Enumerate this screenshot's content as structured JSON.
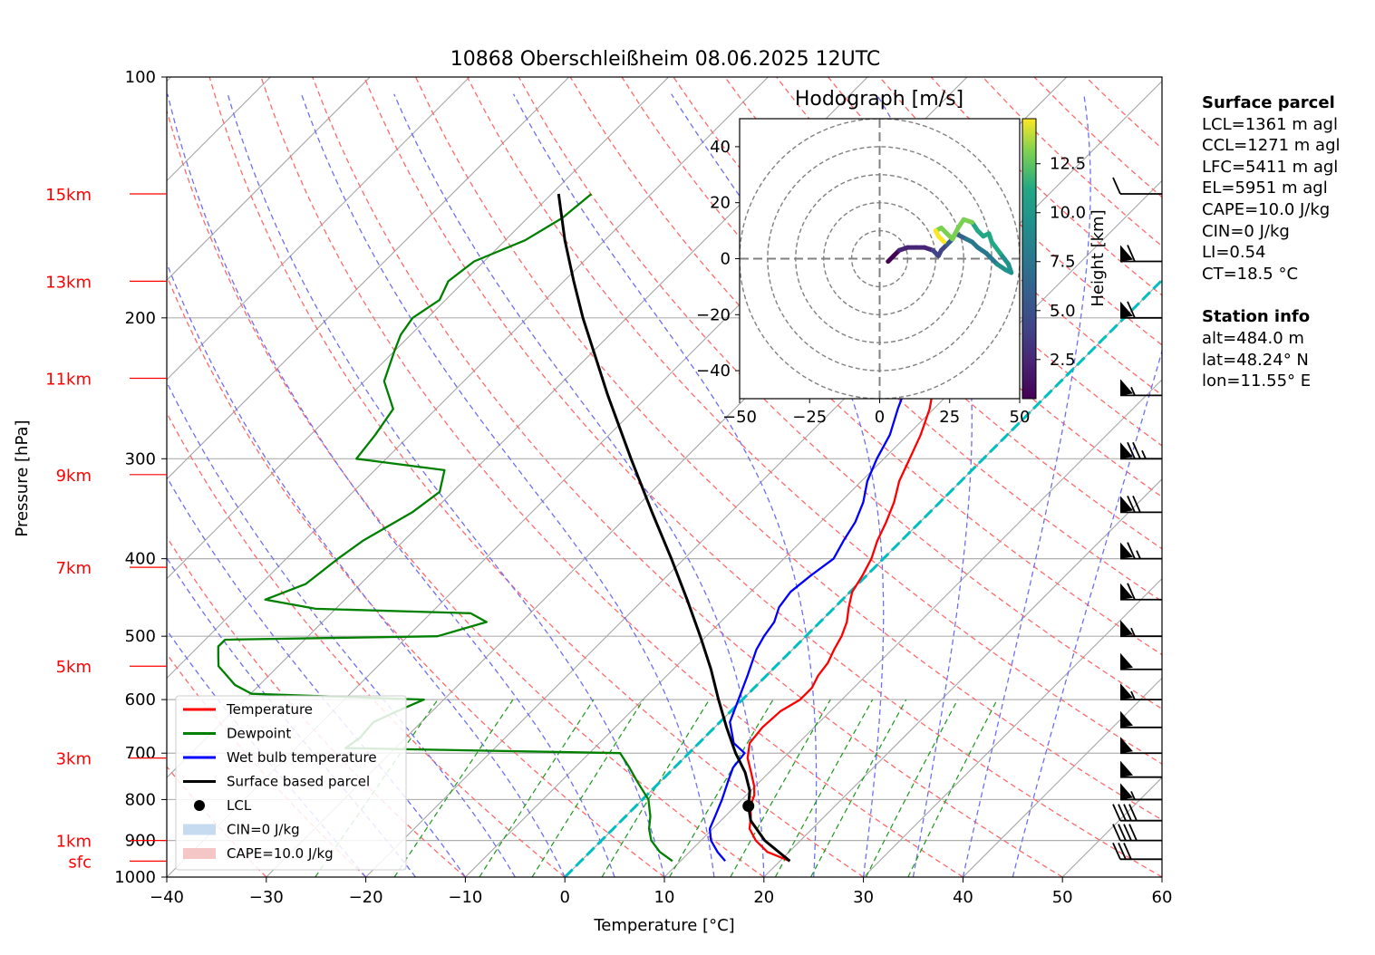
{
  "chart_data": {
    "type": "skew-t log-p sounding with hodograph",
    "title": "10868 Oberschleißheim 08.06.2025 12UTC",
    "xlabel": "Temperature [°C]",
    "ylabel": "Pressure [hPa]",
    "xlim": [
      -40,
      60
    ],
    "ylim": [
      1000,
      100
    ],
    "x_ticks": [
      -40,
      -30,
      -20,
      -10,
      0,
      10,
      20,
      30,
      40,
      50,
      60
    ],
    "y_ticks": [
      100,
      200,
      300,
      400,
      500,
      600,
      700,
      800,
      900,
      1000
    ],
    "height_labels": [
      {
        "label": "sfc",
        "p": 955
      },
      {
        "label": "1km",
        "p": 900
      },
      {
        "label": "3km",
        "p": 710
      },
      {
        "label": "5km",
        "p": 545
      },
      {
        "label": "7km",
        "p": 410
      },
      {
        "label": "9km",
        "p": 314
      },
      {
        "label": "11km",
        "p": 238
      },
      {
        "label": "13km",
        "p": 180
      },
      {
        "label": "15km",
        "p": 140
      }
    ],
    "legend": {
      "placement": "lower-left",
      "entries": [
        {
          "label": "Temperature",
          "color": "#ff0000",
          "kind": "line"
        },
        {
          "label": "Dewpoint",
          "color": "#008000",
          "kind": "line"
        },
        {
          "label": "Wet bulb temperature",
          "color": "#0000ff",
          "kind": "line"
        },
        {
          "label": "Surface based parcel",
          "color": "#000000",
          "kind": "line"
        },
        {
          "label": "LCL",
          "color": "#000000",
          "kind": "dot"
        },
        {
          "label": "CIN=0 J/kg",
          "color": "#c6dbef",
          "kind": "patch"
        },
        {
          "label": "CAPE=10.0 J/kg",
          "color": "#f4c6c6",
          "kind": "patch"
        }
      ]
    },
    "series": [
      {
        "name": "Temperature",
        "color": "#ff0000",
        "points": [
          [
            955,
            21.0
          ],
          [
            930,
            17.8
          ],
          [
            900,
            15.5
          ],
          [
            870,
            13.7
          ],
          [
            840,
            12.6
          ],
          [
            815,
            11.5
          ],
          [
            790,
            10.8
          ],
          [
            770,
            9.9
          ],
          [
            740,
            8.2
          ],
          [
            710,
            6.4
          ],
          [
            680,
            5.1
          ],
          [
            650,
            4.8
          ],
          [
            620,
            5.0
          ],
          [
            600,
            5.8
          ],
          [
            580,
            5.8
          ],
          [
            560,
            5.2
          ],
          [
            540,
            4.9
          ],
          [
            520,
            4.2
          ],
          [
            500,
            3.6
          ],
          [
            480,
            2.7
          ],
          [
            460,
            1.4
          ],
          [
            440,
            0.2
          ],
          [
            420,
            -0.4
          ],
          [
            400,
            -1.2
          ],
          [
            380,
            -2.4
          ],
          [
            360,
            -3.4
          ],
          [
            340,
            -4.6
          ],
          [
            320,
            -6.2
          ],
          [
            300,
            -7.4
          ],
          [
            280,
            -8.7
          ],
          [
            260,
            -10.4
          ],
          [
            245,
            -12.1
          ],
          [
            230,
            -13.6
          ],
          [
            220,
            -13.1
          ],
          [
            210,
            -14.6
          ],
          [
            200,
            -15.0
          ],
          [
            190,
            -16.2
          ],
          [
            180,
            -17.5
          ],
          [
            170,
            -19.4
          ],
          [
            160,
            -21.8
          ],
          [
            150,
            -24.7
          ],
          [
            140,
            -28.5
          ]
        ]
      },
      {
        "name": "Dewpoint",
        "color": "#008000",
        "points": [
          [
            955,
            9.2
          ],
          [
            930,
            7.0
          ],
          [
            900,
            5.0
          ],
          [
            870,
            3.6
          ],
          [
            840,
            2.5
          ],
          [
            800,
            0.6
          ],
          [
            760,
            -2.3
          ],
          [
            730,
            -4.5
          ],
          [
            700,
            -6.9
          ],
          [
            690,
            -35.0
          ],
          [
            670,
            -34.6
          ],
          [
            640,
            -34.8
          ],
          [
            620,
            -33.5
          ],
          [
            600,
            -32.0
          ],
          [
            590,
            -49.9
          ],
          [
            575,
            -52.5
          ],
          [
            560,
            -54.2
          ],
          [
            545,
            -56.0
          ],
          [
            530,
            -57.0
          ],
          [
            515,
            -58.0
          ],
          [
            505,
            -58.0
          ],
          [
            500,
            -37.0
          ],
          [
            480,
            -33.5
          ],
          [
            468,
            -36.0
          ],
          [
            462,
            -52.0
          ],
          [
            450,
            -58.0
          ],
          [
            430,
            -55.5
          ],
          [
            400,
            -54.8
          ],
          [
            380,
            -54.1
          ],
          [
            350,
            -52.0
          ],
          [
            330,
            -51.3
          ],
          [
            310,
            -53.0
          ],
          [
            300,
            -63.0
          ],
          [
            280,
            -63.5
          ],
          [
            260,
            -64.3
          ],
          [
            240,
            -68.0
          ],
          [
            220,
            -70.0
          ],
          [
            210,
            -71.0
          ],
          [
            200,
            -71.5
          ],
          [
            190,
            -70.6
          ],
          [
            180,
            -71.6
          ],
          [
            170,
            -71.0
          ],
          [
            160,
            -68.0
          ],
          [
            150,
            -66.5
          ],
          [
            140,
            -66.0
          ]
        ]
      },
      {
        "name": "Wet bulb temperature",
        "color": "#0000ff",
        "points": [
          [
            955,
            14.5
          ],
          [
            930,
            12.8
          ],
          [
            900,
            11.0
          ],
          [
            870,
            9.7
          ],
          [
            840,
            9.0
          ],
          [
            800,
            8.0
          ],
          [
            760,
            6.8
          ],
          [
            730,
            5.9
          ],
          [
            700,
            5.6
          ],
          [
            680,
            3.5
          ],
          [
            640,
            1.0
          ],
          [
            600,
            -0.4
          ],
          [
            560,
            -1.9
          ],
          [
            520,
            -3.6
          ],
          [
            500,
            -4.2
          ],
          [
            480,
            -4.6
          ],
          [
            460,
            -5.6
          ],
          [
            440,
            -6.0
          ],
          [
            420,
            -5.6
          ],
          [
            400,
            -5.0
          ],
          [
            380,
            -5.8
          ],
          [
            360,
            -6.5
          ],
          [
            340,
            -7.7
          ],
          [
            320,
            -9.4
          ],
          [
            300,
            -10.7
          ],
          [
            280,
            -11.8
          ],
          [
            260,
            -13.6
          ],
          [
            245,
            -14.9
          ],
          [
            230,
            -16.0
          ],
          [
            220,
            -15.6
          ],
          [
            210,
            -17.0
          ],
          [
            200,
            -17.4
          ],
          [
            190,
            -18.2
          ],
          [
            180,
            -18.9
          ],
          [
            170,
            -20.7
          ],
          [
            160,
            -22.9
          ],
          [
            150,
            -25.6
          ],
          [
            140,
            -29.2
          ]
        ]
      },
      {
        "name": "Surface based parcel",
        "color": "#000000",
        "points": [
          [
            955,
            21.0
          ],
          [
            900,
            16.4
          ],
          [
            850,
            13.0
          ],
          [
            815,
            11.3
          ],
          [
            780,
            9.9
          ],
          [
            740,
            7.6
          ],
          [
            700,
            4.7
          ],
          [
            650,
            1.2
          ],
          [
            600,
            -2.4
          ],
          [
            550,
            -6.2
          ],
          [
            500,
            -10.6
          ],
          [
            450,
            -15.6
          ],
          [
            400,
            -21.3
          ],
          [
            350,
            -27.9
          ],
          [
            300,
            -35.4
          ],
          [
            250,
            -44.1
          ],
          [
            200,
            -54.4
          ],
          [
            180,
            -59.0
          ],
          [
            160,
            -64.0
          ],
          [
            140,
            -69.3
          ]
        ]
      }
    ],
    "lcl": {
      "p": 815,
      "t": 11.3
    },
    "wind_barbs": [
      {
        "p": 140,
        "speed_kt": 10
      },
      {
        "p": 170,
        "speed_kt": 60
      },
      {
        "p": 200,
        "speed_kt": 60
      },
      {
        "p": 250,
        "speed_kt": 55
      },
      {
        "p": 300,
        "speed_kt": 75
      },
      {
        "p": 350,
        "speed_kt": 70
      },
      {
        "p": 400,
        "speed_kt": 65
      },
      {
        "p": 450,
        "speed_kt": 60
      },
      {
        "p": 500,
        "speed_kt": 55
      },
      {
        "p": 550,
        "speed_kt": 50
      },
      {
        "p": 600,
        "speed_kt": 55
      },
      {
        "p": 650,
        "speed_kt": 50
      },
      {
        "p": 700,
        "speed_kt": 50
      },
      {
        "p": 750,
        "speed_kt": 50
      },
      {
        "p": 800,
        "speed_kt": 55
      },
      {
        "p": 850,
        "speed_kt": 40
      },
      {
        "p": 900,
        "speed_kt": 40
      },
      {
        "p": 950,
        "speed_kt": 30
      }
    ],
    "hodograph": {
      "title": "Hodograph [m/s]",
      "xlim": [
        -50,
        50
      ],
      "ylim": [
        -50,
        50
      ],
      "x_ticks": [
        -50,
        -25,
        0,
        25,
        50
      ],
      "y_ticks": [
        -40,
        -20,
        0,
        20,
        40
      ],
      "rings": [
        10,
        20,
        30,
        40,
        50
      ],
      "colorbar_label": "Height [km]",
      "colorbar_ticks": [
        2.5,
        5.0,
        7.5,
        10.0,
        12.5
      ],
      "colorbar_range": [
        0.5,
        14.8
      ],
      "points": [
        [
          3,
          -1,
          0.5
        ],
        [
          5,
          1,
          1.0
        ],
        [
          7,
          3,
          1.5
        ],
        [
          10,
          4,
          2.0
        ],
        [
          13,
          4,
          2.5
        ],
        [
          16,
          4,
          3.0
        ],
        [
          19,
          3,
          3.5
        ],
        [
          21,
          1,
          4.0
        ],
        [
          22,
          3,
          4.5
        ],
        [
          24,
          5,
          5.0
        ],
        [
          26,
          7,
          5.5
        ],
        [
          27,
          9,
          6.0
        ],
        [
          29,
          8,
          6.5
        ],
        [
          31,
          7,
          7.0
        ],
        [
          33,
          6,
          7.5
        ],
        [
          35,
          4,
          8.0
        ],
        [
          38,
          2,
          8.5
        ],
        [
          42,
          -2,
          9.0
        ],
        [
          45,
          -4,
          9.5
        ],
        [
          47,
          -5,
          10.0
        ],
        [
          46,
          -2,
          10.3
        ],
        [
          43,
          2,
          10.6
        ],
        [
          40,
          6,
          11.0
        ],
        [
          39,
          9,
          11.4
        ],
        [
          37,
          8,
          11.8
        ],
        [
          35,
          10,
          12.0
        ],
        [
          33,
          13,
          12.3
        ],
        [
          30,
          14,
          12.6
        ],
        [
          28,
          11,
          13.0
        ],
        [
          26,
          7,
          13.3
        ],
        [
          24,
          9,
          13.6
        ],
        [
          22,
          11,
          13.9
        ],
        [
          20,
          10,
          14.2
        ],
        [
          21,
          8,
          14.5
        ],
        [
          23,
          6,
          14.8
        ]
      ]
    }
  },
  "side_panel": {
    "surface_header": "Surface parcel",
    "surface_lines": [
      "LCL=1361 m agl",
      "CCL=1271 m agl",
      "LFC=5411 m agl",
      "EL=5951 m agl",
      "CAPE=10.0 J/kg",
      "CIN=0 J/kg",
      "LI=0.54",
      "CT=18.5 °C"
    ],
    "station_header": "Station info",
    "station_lines": [
      "alt=484.0 m",
      "lat=48.24° N",
      "lon=11.55° E"
    ]
  }
}
